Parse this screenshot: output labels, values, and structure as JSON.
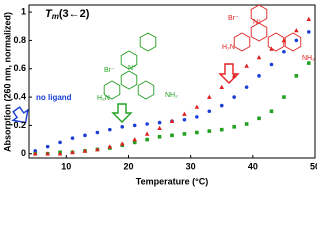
{
  "chart_data": {
    "type": "scatter",
    "title": [
      "T",
      "m",
      "(3←2)"
    ],
    "x_label": "Temperature (°C)",
    "y_label": "Absorption (260 nm, normalized)",
    "x": [
      5,
      7,
      9,
      11,
      13,
      15,
      17,
      19,
      21,
      23,
      25,
      27,
      29,
      31,
      33,
      35,
      37,
      39,
      41,
      43,
      45,
      47,
      49
    ],
    "series": [
      {
        "name": "no ligand",
        "color": "#1a3fd6",
        "marker": "circle",
        "values": [
          0.02,
          0.05,
          0.08,
          0.11,
          0.13,
          0.15,
          0.17,
          0.19,
          0.2,
          0.21,
          0.22,
          0.23,
          0.24,
          0.26,
          0.3,
          0.34,
          0.4,
          0.47,
          0.55,
          0.63,
          0.72,
          0.8,
          0.86
        ]
      },
      {
        "color": "#22a022",
        "marker": "square",
        "values": [
          0,
          0,
          0.01,
          0.01,
          0.02,
          0.03,
          0.04,
          0.06,
          0.08,
          0.1,
          0.12,
          0.13,
          0.14,
          0.15,
          0.16,
          0.17,
          0.19,
          0.21,
          0.25,
          0.3,
          0.4,
          0.55,
          0.64
        ]
      },
      {
        "color": "#e02020",
        "marker": "triangle",
        "values": [
          0,
          0,
          0,
          0.01,
          0.02,
          0.03,
          0.05,
          0.07,
          0.1,
          0.14,
          0.18,
          0.23,
          0.28,
          0.33,
          0.4,
          0.47,
          0.55,
          0.62,
          0.68,
          0.74,
          0.8,
          0.87,
          0.95
        ]
      }
    ],
    "xlim": [
      4,
      50
    ],
    "xticks": [
      10,
      20,
      30,
      40,
      50
    ],
    "ylim": [
      -0.03,
      1.05
    ],
    "yticks": [
      0,
      0.2,
      0.4,
      0.6,
      0.8,
      1
    ],
    "molecules": [
      {
        "color": "#22a022",
        "labels": [
          "Br⁻",
          "N⁺",
          "H₂N",
          "NH₂"
        ]
      },
      {
        "color": "#e02020",
        "labels": [
          "Br⁻",
          "N⁺",
          "H₂N",
          "NH₂"
        ]
      }
    ]
  }
}
